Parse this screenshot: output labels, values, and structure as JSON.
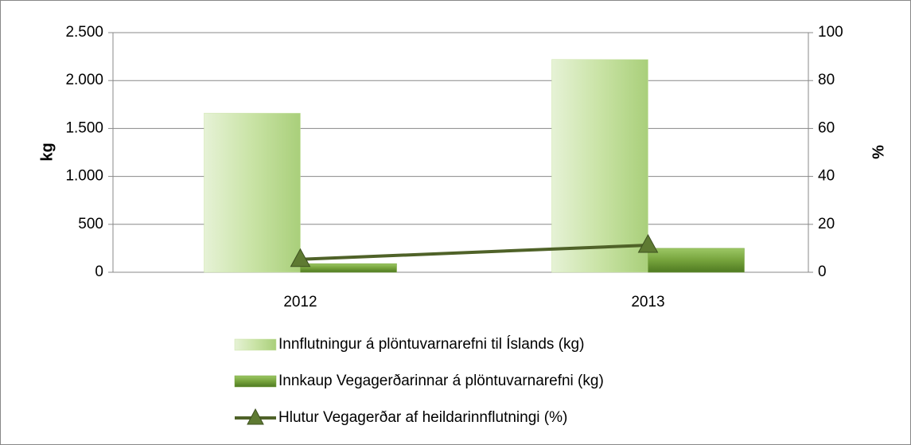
{
  "chart_data": {
    "type": "bar",
    "categories": [
      "2012",
      "2013"
    ],
    "series": [
      {
        "name": "Innflutningur á plöntuvarnarefni til Íslands (kg)",
        "color": "#c9e3a5",
        "values": [
          1660,
          2220
        ]
      },
      {
        "name": "Innkaup Vegagerðarinnar á plöntuvarnarefni (kg)",
        "color": "#76a33c",
        "values": [
          90,
          250
        ]
      },
      {
        "name": "Hlutur Vegagerðar af heildarinnflutningi (%)",
        "color": "#4f6228",
        "type": "line",
        "axis": "y2",
        "values": [
          5.4,
          11.3
        ]
      }
    ],
    "ylabel": "kg",
    "y2label": "%",
    "ylim": [
      0,
      2500
    ],
    "yticks": [
      {
        "value": 0,
        "label": "0"
      },
      {
        "value": 500,
        "label": "500"
      },
      {
        "value": 1000,
        "label": "1.000"
      },
      {
        "value": 1500,
        "label": "1.500"
      },
      {
        "value": 2000,
        "label": "2.000"
      },
      {
        "value": 2500,
        "label": "2.500"
      }
    ],
    "y2lim": [
      0,
      100
    ],
    "y2ticks": [
      0,
      20,
      40,
      60,
      80,
      100
    ],
    "grid": true,
    "legend": "bottom"
  }
}
